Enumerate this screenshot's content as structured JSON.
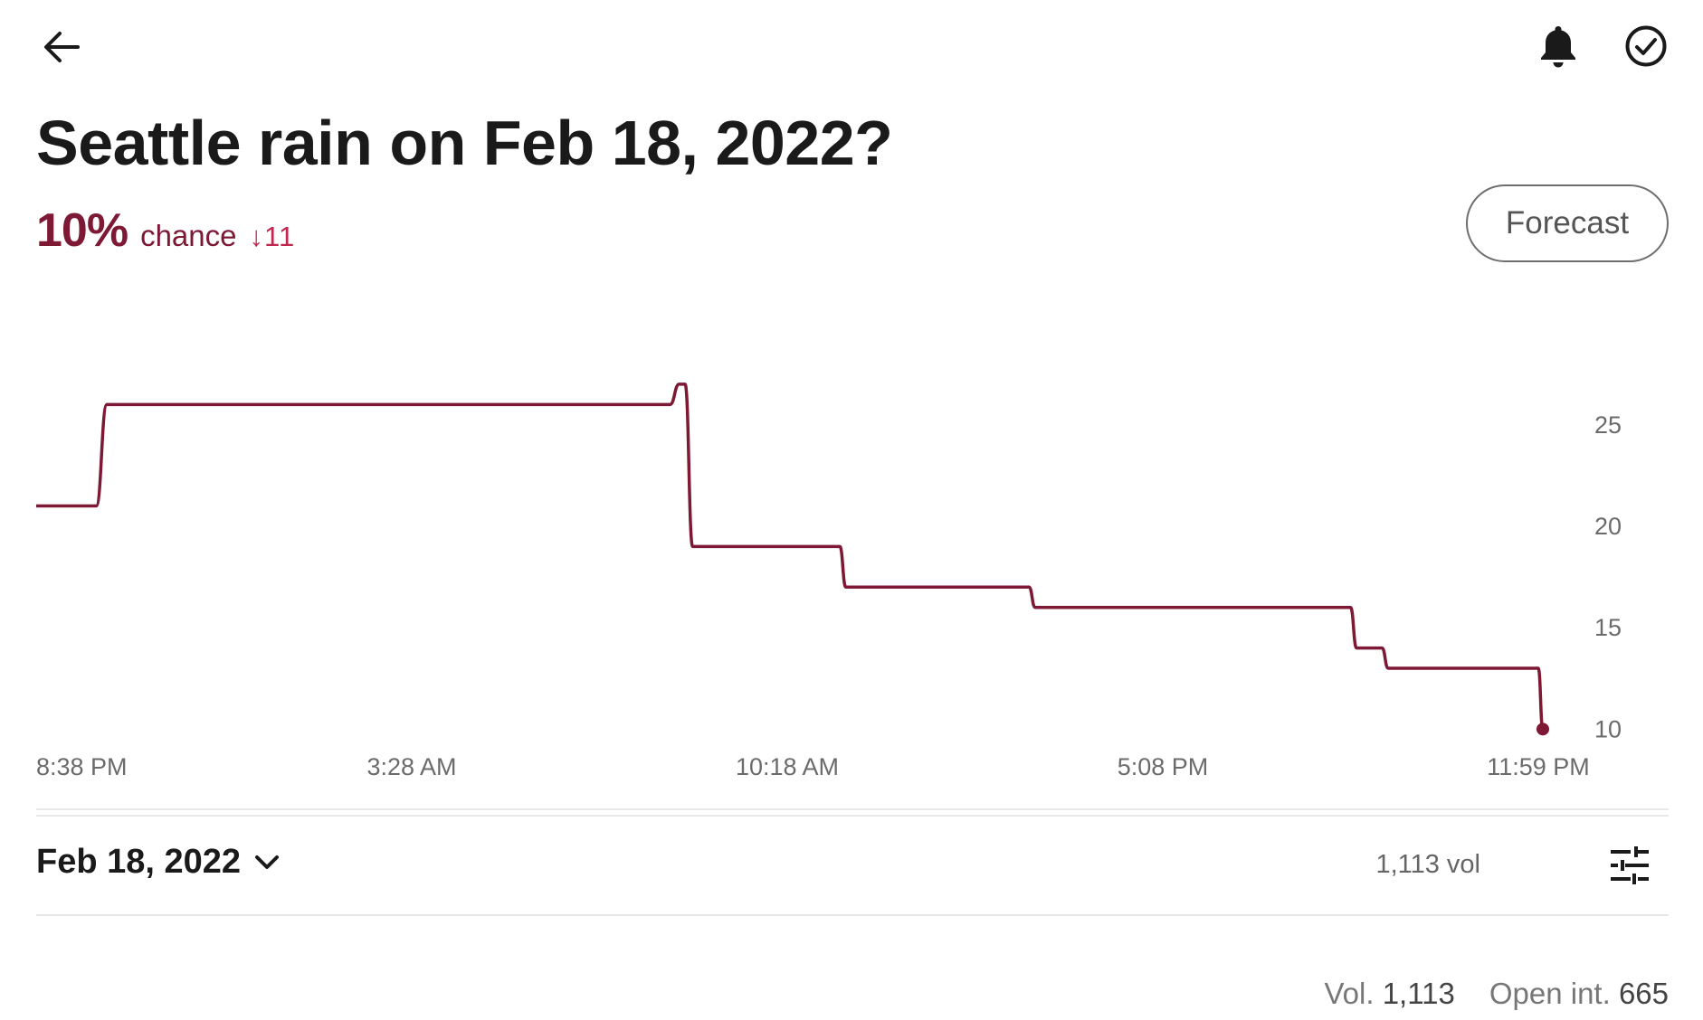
{
  "header": {
    "back_icon": "arrow-left-icon",
    "bell_icon": "bell-icon",
    "check_icon": "check-circle-icon"
  },
  "market": {
    "title": "Seattle rain on Feb 18, 2022?",
    "chance_percent": "10%",
    "chance_label": "chance",
    "change": "↓11",
    "forecast_button": "Forecast",
    "accent_color": "#7d1935"
  },
  "chart_data": {
    "type": "line",
    "x_tick_labels": [
      "8:38 PM",
      "3:28 AM",
      "10:18 AM",
      "5:08 PM",
      "11:59 PM"
    ],
    "y_ticks": [
      10,
      15,
      20,
      25
    ],
    "ylim": [
      8.5,
      29
    ],
    "xlim": [
      0,
      1000
    ],
    "series": [
      {
        "color": "#7d1935",
        "points": [
          [
            0,
            21
          ],
          [
            40,
            21
          ],
          [
            47,
            26
          ],
          [
            422,
            26
          ],
          [
            428,
            27
          ],
          [
            432,
            27
          ],
          [
            437,
            19
          ],
          [
            535,
            19
          ],
          [
            539,
            17
          ],
          [
            661,
            17
          ],
          [
            665,
            16
          ],
          [
            875,
            16
          ],
          [
            879,
            14
          ],
          [
            896,
            14
          ],
          [
            900,
            13
          ],
          [
            1000,
            13
          ],
          [
            1003,
            10
          ]
        ]
      }
    ],
    "grid": false
  },
  "footer": {
    "date_select": "Feb 18, 2022",
    "chevron_icon": "chevron-down-icon",
    "volume_small": "1,113 vol",
    "filter_icon": "sliders-icon",
    "vol_label": "Vol.",
    "vol_value": "1,113",
    "open_int_label": "Open int.",
    "open_int_value": "665"
  }
}
